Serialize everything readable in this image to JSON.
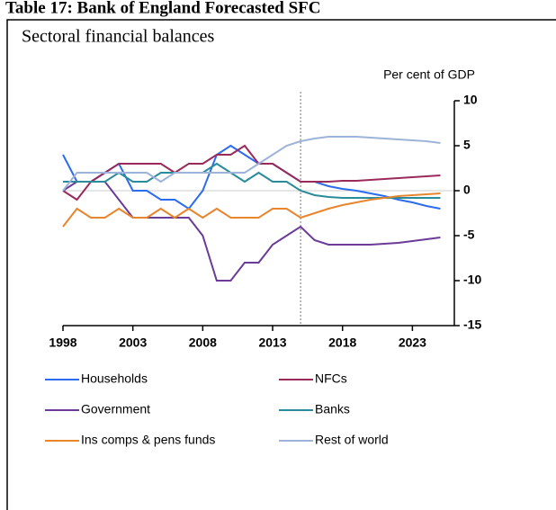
{
  "chart_data": {
    "type": "line",
    "header": "Table 17: Bank of England Forecasted SFC",
    "title": "Sectoral financial balances",
    "y_label": "Per cent of GDP",
    "x": [
      1998,
      1999,
      2000,
      2001,
      2002,
      2003,
      2004,
      2005,
      2006,
      2007,
      2008,
      2009,
      2010,
      2011,
      2012,
      2013,
      2014,
      2015,
      2016,
      2017,
      2018,
      2019,
      2020,
      2021,
      2022,
      2023,
      2024,
      2025
    ],
    "xlim": [
      1998,
      2026
    ],
    "xticks": [
      1998,
      2003,
      2008,
      2013,
      2018,
      2023
    ],
    "ylim": [
      -15,
      10
    ],
    "yticks": [
      10,
      5,
      0,
      -5,
      -10,
      -15
    ],
    "forecast_start": 2015,
    "series": [
      {
        "name": "Households",
        "color": "#2b6cf0",
        "values": [
          4,
          1,
          1,
          2,
          3,
          0,
          0,
          -1,
          -1,
          -2,
          0,
          4,
          5,
          4,
          3,
          3,
          2,
          1,
          1,
          0.5,
          0.2,
          0,
          -0.3,
          -0.6,
          -1,
          -1.3,
          -1.7,
          -2
        ]
      },
      {
        "name": "NFCs",
        "color": "#9b2a5c",
        "values": [
          0,
          -1,
          1,
          2,
          3,
          3,
          3,
          3,
          2,
          3,
          3,
          4,
          4,
          5,
          3,
          3,
          2,
          1,
          1,
          1,
          1.1,
          1.1,
          1.2,
          1.3,
          1.4,
          1.5,
          1.6,
          1.7
        ]
      },
      {
        "name": "Government",
        "color": "#6a3b98",
        "values": [
          0,
          1,
          1,
          1,
          -1,
          -3,
          -3,
          -3,
          -3,
          -3,
          -5,
          -10,
          -10,
          -8,
          -8,
          -6,
          -5,
          -4,
          -5.5,
          -6,
          -6,
          -6,
          -6,
          -5.9,
          -5.8,
          -5.6,
          -5.4,
          -5.2
        ]
      },
      {
        "name": "Banks",
        "color": "#2a8c9b",
        "values": [
          1,
          1,
          1,
          1,
          2,
          1,
          1,
          2,
          2,
          2,
          2,
          3,
          2,
          1,
          2,
          1,
          1,
          0,
          -0.5,
          -0.7,
          -0.8,
          -0.8,
          -0.8,
          -0.8,
          -0.8,
          -0.8,
          -0.8,
          -0.8
        ]
      },
      {
        "name": "Ins comps & pens funds",
        "color": "#e8852d",
        "values": [
          -4,
          -2,
          -3,
          -3,
          -2,
          -3,
          -3,
          -2,
          -3,
          -2,
          -3,
          -2,
          -3,
          -3,
          -3,
          -2,
          -2,
          -3,
          -2.5,
          -2,
          -1.6,
          -1.3,
          -1,
          -0.8,
          -0.6,
          -0.5,
          -0.4,
          -0.3
        ]
      },
      {
        "name": "Rest of world",
        "color": "#9db4d8",
        "values": [
          0,
          2,
          2,
          2,
          2,
          2,
          2,
          1,
          2,
          2,
          2,
          2,
          2,
          2,
          3,
          4,
          5,
          5.5,
          5.8,
          6,
          6,
          6,
          5.9,
          5.8,
          5.7,
          5.6,
          5.5,
          5.3
        ]
      }
    ]
  }
}
